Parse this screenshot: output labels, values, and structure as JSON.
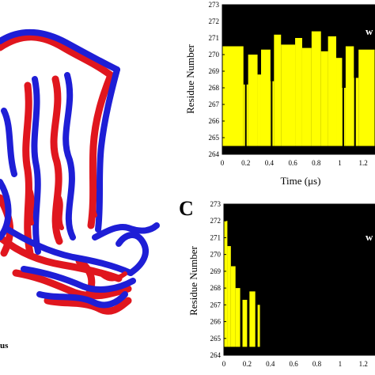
{
  "panel_a": {
    "caption_fragment": "us",
    "colors": {
      "structure_1": "#e0161e",
      "structure_2": "#1e1ed6"
    }
  },
  "chart_data": [
    {
      "type": "heatmap",
      "panel_letter": "",
      "overlay_label": "w",
      "xlabel": "Time (μs)",
      "ylabel": "Residue Number",
      "xlim": [
        0,
        1.3
      ],
      "ylim": [
        264,
        273
      ],
      "x_ticks": [
        "0",
        "0.2",
        "0.4",
        "0.6",
        "0.8",
        "1",
        "1.2"
      ],
      "y_ticks": [
        "273",
        "272",
        "271",
        "270",
        "269",
        "268",
        "267",
        "266",
        "265",
        "264"
      ],
      "background_color": "#000000",
      "state_color": "#ffff00",
      "segments": [
        {
          "x": [
            0.0,
            0.18
          ],
          "y": [
            264.5,
            270.5
          ]
        },
        {
          "x": [
            0.18,
            0.22
          ],
          "y": [
            264.5,
            268.2
          ]
        },
        {
          "x": [
            0.22,
            0.3
          ],
          "y": [
            264.5,
            270.0
          ]
        },
        {
          "x": [
            0.3,
            0.33
          ],
          "y": [
            264.5,
            268.8
          ]
        },
        {
          "x": [
            0.33,
            0.41
          ],
          "y": [
            264.5,
            270.3
          ]
        },
        {
          "x": [
            0.41,
            0.44
          ],
          "y": [
            264.5,
            268.4
          ]
        },
        {
          "x": [
            0.44,
            0.5
          ],
          "y": [
            264.5,
            271.2
          ]
        },
        {
          "x": [
            0.5,
            0.62
          ],
          "y": [
            264.5,
            270.6
          ]
        },
        {
          "x": [
            0.62,
            0.68
          ],
          "y": [
            264.5,
            271.0
          ]
        },
        {
          "x": [
            0.68,
            0.76
          ],
          "y": [
            264.5,
            270.4
          ]
        },
        {
          "x": [
            0.76,
            0.84
          ],
          "y": [
            264.5,
            271.4
          ]
        },
        {
          "x": [
            0.84,
            0.9
          ],
          "y": [
            264.5,
            270.2
          ]
        },
        {
          "x": [
            0.9,
            0.97
          ],
          "y": [
            264.5,
            271.1
          ]
        },
        {
          "x": [
            0.97,
            1.02
          ],
          "y": [
            264.5,
            269.8
          ]
        },
        {
          "x": [
            1.02,
            1.05
          ],
          "y": [
            264.5,
            268.0
          ]
        },
        {
          "x": [
            1.05,
            1.12
          ],
          "y": [
            264.5,
            270.5
          ]
        },
        {
          "x": [
            1.12,
            1.16
          ],
          "y": [
            264.5,
            268.6
          ]
        },
        {
          "x": [
            1.16,
            1.3
          ],
          "y": [
            264.5,
            270.3
          ]
        }
      ],
      "gaps": [
        0.2,
        0.42,
        1.03,
        1.13
      ]
    },
    {
      "type": "heatmap",
      "panel_letter": "C",
      "overlay_label": "w",
      "xlabel": "",
      "ylabel": "Residue Number",
      "xlim": [
        0,
        1.3
      ],
      "ylim": [
        264,
        273
      ],
      "x_ticks": [
        "0",
        "0.2",
        "0.4",
        "0.6",
        "0.8",
        "1",
        "1.2"
      ],
      "y_ticks": [
        "273",
        "272",
        "271",
        "270",
        "269",
        "268",
        "267",
        "266",
        "265",
        "264"
      ],
      "background_color": "#000000",
      "state_color": "#ffff00",
      "segments": [
        {
          "x": [
            0.0,
            0.03
          ],
          "y": [
            264.5,
            272.0
          ]
        },
        {
          "x": [
            0.03,
            0.06
          ],
          "y": [
            264.5,
            270.5
          ]
        },
        {
          "x": [
            0.06,
            0.1
          ],
          "y": [
            264.5,
            269.3
          ]
        },
        {
          "x": [
            0.1,
            0.14
          ],
          "y": [
            264.5,
            268.0
          ]
        },
        {
          "x": [
            0.16,
            0.2
          ],
          "y": [
            264.5,
            267.3
          ]
        },
        {
          "x": [
            0.22,
            0.27
          ],
          "y": [
            264.5,
            267.8
          ]
        },
        {
          "x": [
            0.29,
            0.31
          ],
          "y": [
            264.5,
            267.0
          ]
        }
      ],
      "gaps": []
    }
  ]
}
